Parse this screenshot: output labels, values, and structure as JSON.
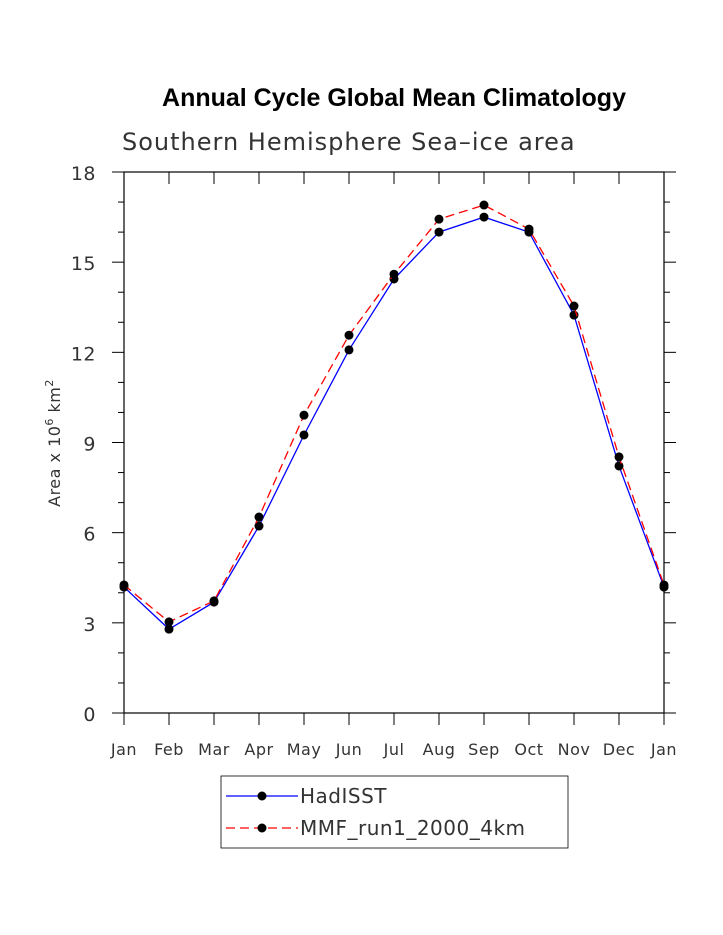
{
  "chart_data": {
    "type": "line",
    "title": "Annual Cycle Global Mean Climatology",
    "subtitle": "Southern Hemisphere Sea–ice area",
    "ylabel": "Area x 10",
    "ylabel_sup1": "6",
    "ylabel_unit": " km",
    "ylabel_sup2": "2",
    "xlabel": "",
    "categories": [
      "Jan",
      "Feb",
      "Mar",
      "Apr",
      "May",
      "Jun",
      "Jul",
      "Aug",
      "Sep",
      "Oct",
      "Nov",
      "Dec",
      "Jan"
    ],
    "ylim": [
      0,
      18
    ],
    "yticks": [
      0,
      3,
      6,
      9,
      12,
      15,
      18
    ],
    "grid": false,
    "legend_position": "bottom-center",
    "series": [
      {
        "name": "HadISST",
        "color": "#0000ff",
        "dash": "solid",
        "values": [
          4.19,
          2.79,
          3.69,
          6.22,
          9.25,
          12.08,
          14.44,
          16.0,
          16.5,
          16.0,
          13.24,
          8.22,
          4.19
        ]
      },
      {
        "name": "MMF_run1_2000_4km",
        "color": "#ff0000",
        "dash": "dashed",
        "values": [
          4.26,
          3.03,
          3.73,
          6.52,
          9.91,
          12.57,
          14.6,
          16.43,
          16.9,
          16.1,
          13.54,
          8.52,
          4.26
        ]
      }
    ]
  }
}
